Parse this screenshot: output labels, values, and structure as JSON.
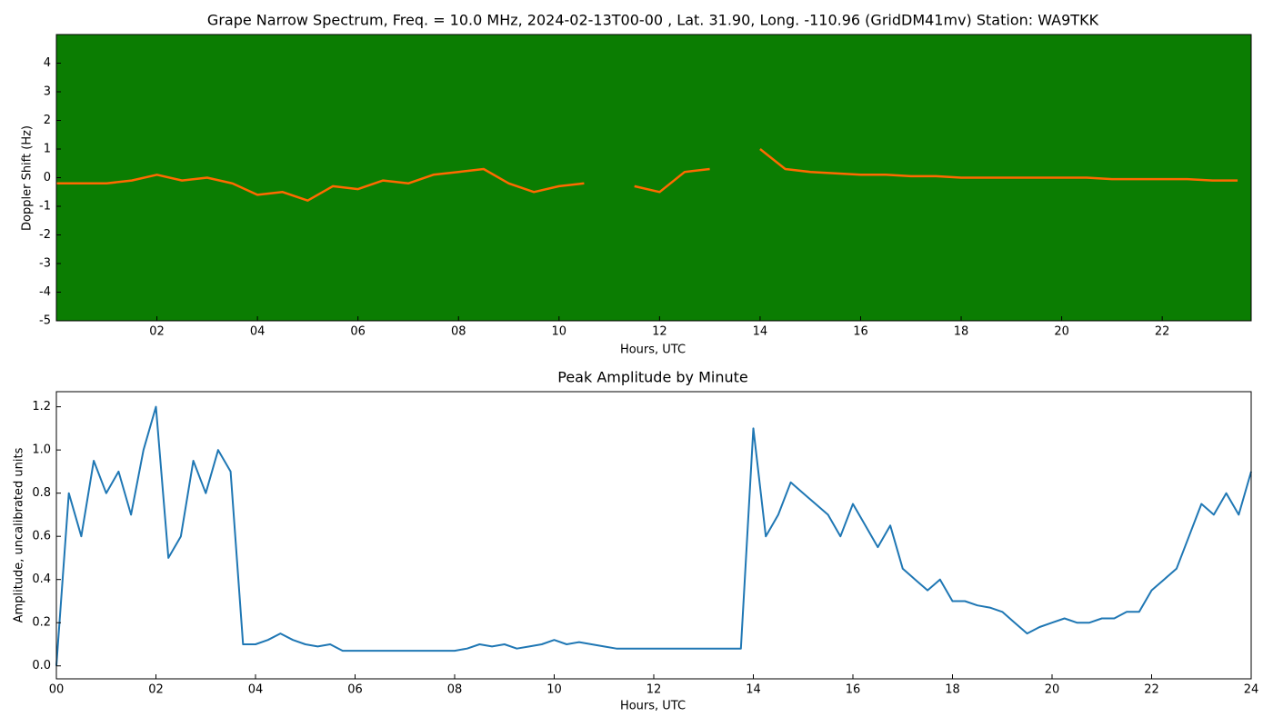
{
  "chart_data": [
    {
      "type": "spectrogram",
      "title": "Grape Narrow Spectrum, Freq. = 10.0 MHz, 2024-02-13T00-00 , Lat.  31.90, Long. -110.96 (GridDM41mv) Station: WA9TKK",
      "xlabel": "Hours, UTC",
      "ylabel": "Doppler Shift (Hz)",
      "background_color": "#0b7d02",
      "color": "#ff6a00",
      "x": [
        0,
        0.5,
        1,
        1.5,
        2,
        2.5,
        3,
        3.5,
        4,
        4.5,
        5,
        5.5,
        6,
        6.5,
        7,
        7.5,
        8,
        8.5,
        9,
        9.5,
        10,
        10.5,
        11,
        11.5,
        12,
        12.5,
        13,
        13.5,
        14,
        14.5,
        15,
        15.5,
        16,
        16.5,
        17,
        17.5,
        18,
        18.5,
        19,
        19.5,
        20,
        20.5,
        21,
        21.5,
        22,
        22.5,
        23,
        23.5
      ],
      "values": [
        -0.2,
        -0.2,
        -0.2,
        -0.1,
        0.1,
        -0.1,
        0,
        -0.2,
        -0.6,
        -0.5,
        -0.8,
        -0.3,
        -0.4,
        -0.1,
        -0.2,
        0.1,
        0.2,
        0.3,
        -0.2,
        -0.5,
        -0.3,
        -0.2,
        null,
        -0.3,
        -0.5,
        0.2,
        0.3,
        null,
        1.0,
        0.3,
        0.2,
        0.15,
        0.1,
        0.1,
        0.05,
        0.05,
        0,
        0,
        0,
        0,
        0,
        0,
        -0.05,
        -0.05,
        -0.05,
        -0.05,
        -0.1,
        -0.1
      ],
      "xlim": [
        0,
        23.77
      ],
      "xticks": [
        {
          "value": 2,
          "label": "02"
        },
        {
          "value": 4,
          "label": "04"
        },
        {
          "value": 6,
          "label": "06"
        },
        {
          "value": 8,
          "label": "08"
        },
        {
          "value": 10,
          "label": "10"
        },
        {
          "value": 12,
          "label": "12"
        },
        {
          "value": 14,
          "label": "14"
        },
        {
          "value": 16,
          "label": "16"
        },
        {
          "value": 18,
          "label": "18"
        },
        {
          "value": 20,
          "label": "20"
        },
        {
          "value": 22,
          "label": "22"
        }
      ],
      "ylim": [
        -5,
        5
      ],
      "yticks": [
        -5,
        -4,
        -3,
        -2,
        -1,
        0,
        1,
        2,
        3,
        4
      ]
    },
    {
      "type": "line",
      "title": "Peak Amplitude by Minute",
      "xlabel": "Hours, UTC",
      "ylabel": "Amplitude, uncalibrated units",
      "color": "#1f77b4",
      "x": [
        0,
        0.25,
        0.5,
        0.75,
        1,
        1.25,
        1.5,
        1.75,
        2,
        2.25,
        2.5,
        2.75,
        3,
        3.25,
        3.5,
        3.75,
        4,
        4.25,
        4.5,
        4.75,
        5,
        5.25,
        5.5,
        5.75,
        6,
        6.25,
        6.5,
        6.75,
        7,
        7.25,
        7.5,
        7.75,
        8,
        8.25,
        8.5,
        8.75,
        9,
        9.25,
        9.5,
        9.75,
        10,
        10.25,
        10.5,
        10.75,
        11,
        11.25,
        11.5,
        11.75,
        12,
        12.25,
        12.5,
        12.75,
        13,
        13.25,
        13.5,
        13.75,
        14,
        14.25,
        14.5,
        14.75,
        15,
        15.25,
        15.5,
        15.75,
        16,
        16.25,
        16.5,
        16.75,
        17,
        17.25,
        17.5,
        17.75,
        18,
        18.25,
        18.5,
        18.75,
        19,
        19.25,
        19.5,
        19.75,
        20,
        20.25,
        20.5,
        20.75,
        21,
        21.25,
        21.5,
        21.75,
        22,
        22.25,
        22.5,
        22.75,
        23,
        23.25,
        23.5,
        23.75,
        24
      ],
      "values": [
        0.0,
        0.8,
        0.6,
        0.95,
        0.8,
        0.9,
        0.7,
        1.0,
        1.2,
        0.5,
        0.6,
        0.95,
        0.8,
        1.0,
        0.9,
        0.1,
        0.1,
        0.12,
        0.15,
        0.12,
        0.1,
        0.09,
        0.1,
        0.07,
        0.07,
        0.07,
        0.07,
        0.07,
        0.07,
        0.07,
        0.07,
        0.07,
        0.07,
        0.08,
        0.1,
        0.09,
        0.1,
        0.08,
        0.09,
        0.1,
        0.12,
        0.1,
        0.11,
        0.1,
        0.09,
        0.08,
        0.08,
        0.08,
        0.08,
        0.08,
        0.08,
        0.08,
        0.08,
        0.08,
        0.08,
        0.08,
        1.1,
        0.6,
        0.7,
        0.85,
        0.8,
        0.75,
        0.7,
        0.6,
        0.75,
        0.65,
        0.55,
        0.65,
        0.45,
        0.4,
        0.35,
        0.4,
        0.3,
        0.3,
        0.28,
        0.27,
        0.25,
        0.2,
        0.15,
        0.18,
        0.2,
        0.22,
        0.2,
        0.2,
        0.22,
        0.22,
        0.25,
        0.25,
        0.35,
        0.4,
        0.45,
        0.6,
        0.75,
        0.7,
        0.8,
        0.7,
        0.9
      ],
      "xlim": [
        0,
        24
      ],
      "xticks": [
        {
          "value": 0,
          "label": "00"
        },
        {
          "value": 2,
          "label": "02"
        },
        {
          "value": 4,
          "label": "04"
        },
        {
          "value": 6,
          "label": "06"
        },
        {
          "value": 8,
          "label": "08"
        },
        {
          "value": 10,
          "label": "10"
        },
        {
          "value": 12,
          "label": "12"
        },
        {
          "value": 14,
          "label": "14"
        },
        {
          "value": 16,
          "label": "16"
        },
        {
          "value": 18,
          "label": "18"
        },
        {
          "value": 20,
          "label": "20"
        },
        {
          "value": 22,
          "label": "22"
        },
        {
          "value": 24,
          "label": "24"
        }
      ],
      "ylim": [
        -0.06,
        1.27
      ],
      "yticks": [
        {
          "value": 0,
          "label": "0.0"
        },
        0.2,
        0.4,
        0.6,
        0.8,
        {
          "value": 1,
          "label": "1.0"
        },
        1.2
      ]
    }
  ]
}
